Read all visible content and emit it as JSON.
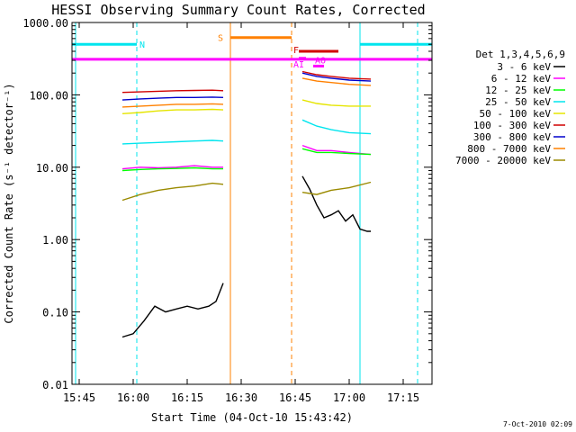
{
  "chart_data": {
    "type": "line",
    "title": "HESSI Observing Summary Count Rates, Corrected",
    "xlabel": "Start Time (04-Oct-10 15:43:42)",
    "ylabel": "Corrected Count Rate (s⁻¹ detector⁻¹)",
    "y_scale": "log",
    "ylim": [
      0.01,
      1000
    ],
    "xlim": [
      "15:43",
      "17:23"
    ],
    "x_ticks": [
      "15:45",
      "16:00",
      "16:15",
      "16:30",
      "16:45",
      "17:00",
      "17:15"
    ],
    "y_ticks": [
      "0.01",
      "0.10",
      "1.00",
      "10.00",
      "100.00",
      "1000.00"
    ],
    "legend_title": "Det 1,3,4,5,6,9",
    "legend_position": "right",
    "timestamp": "7-Oct-2010 02:09",
    "series": [
      {
        "name": "3 - 6 keV",
        "color": "#000000",
        "segments": [
          {
            "x": [
              "15:57",
              "16:00",
              "16:03",
              "16:06",
              "16:09",
              "16:12",
              "16:15",
              "16:18",
              "16:21",
              "16:23",
              "16:25"
            ],
            "y": [
              0.045,
              0.05,
              0.075,
              0.12,
              0.1,
              0.11,
              0.12,
              0.11,
              0.12,
              0.14,
              0.25
            ]
          },
          {
            "x": [
              "16:47",
              "16:49",
              "16:51",
              "16:53",
              "16:55",
              "16:57",
              "16:59",
              "17:01",
              "17:03",
              "17:05",
              "17:06"
            ],
            "y": [
              7.5,
              5.0,
              3.0,
              2.0,
              2.2,
              2.5,
              1.8,
              2.2,
              1.4,
              1.3,
              1.3
            ]
          }
        ]
      },
      {
        "name": "6 - 12 keV",
        "color": "#ff00ff",
        "segments": [
          {
            "x": [
              "15:57",
              "16:02",
              "16:07",
              "16:12",
              "16:17",
              "16:22",
              "16:25"
            ],
            "y": [
              9.5,
              10,
              9.8,
              10,
              10.5,
              10,
              10
            ]
          },
          {
            "x": [
              "16:47",
              "16:51",
              "16:55",
              "17:00",
              "17:06"
            ],
            "y": [
              20,
              17,
              17,
              16,
              15
            ]
          }
        ]
      },
      {
        "name": "12 - 25 keV",
        "color": "#00ff00",
        "segments": [
          {
            "x": [
              "15:57",
              "16:02",
              "16:07",
              "16:12",
              "16:17",
              "16:22",
              "16:25"
            ],
            "y": [
              9.0,
              9.3,
              9.5,
              9.6,
              9.8,
              9.5,
              9.5
            ]
          },
          {
            "x": [
              "16:47",
              "16:51",
              "16:55",
              "17:00",
              "17:06"
            ],
            "y": [
              18,
              16,
              16,
              15.5,
              15
            ]
          }
        ]
      },
      {
        "name": "25 - 50 keV",
        "color": "#00e5ee",
        "segments": [
          {
            "x": [
              "15:57",
              "16:02",
              "16:07",
              "16:12",
              "16:17",
              "16:22",
              "16:25"
            ],
            "y": [
              21,
              21.5,
              22,
              22.5,
              23,
              23.5,
              23
            ]
          },
          {
            "x": [
              "16:47",
              "16:51",
              "16:55",
              "17:00",
              "17:06"
            ],
            "y": [
              45,
              37,
              33,
              30,
              29
            ]
          }
        ]
      },
      {
        "name": "50 - 100 keV",
        "color": "#e5e500",
        "segments": [
          {
            "x": [
              "15:57",
              "16:02",
              "16:07",
              "16:12",
              "16:17",
              "16:22",
              "16:25"
            ],
            "y": [
              55,
              57,
              60,
              62,
              62,
              63,
              62
            ]
          },
          {
            "x": [
              "16:47",
              "16:51",
              "16:55",
              "17:00",
              "17:06"
            ],
            "y": [
              85,
              76,
              72,
              70,
              70
            ]
          }
        ]
      },
      {
        "name": "100 - 300 keV",
        "color": "#d00000",
        "segments": [
          {
            "x": [
              "15:57",
              "16:02",
              "16:07",
              "16:12",
              "16:17",
              "16:22",
              "16:25"
            ],
            "y": [
              108,
              110,
              112,
              114,
              115,
              116,
              114
            ]
          },
          {
            "x": [
              "16:47",
              "16:51",
              "16:55",
              "17:00",
              "17:06"
            ],
            "y": [
              210,
              190,
              180,
              170,
              165
            ]
          }
        ]
      },
      {
        "name": "300 - 800 keV",
        "color": "#0000cc",
        "segments": [
          {
            "x": [
              "15:57",
              "16:02",
              "16:07",
              "16:12",
              "16:17",
              "16:22",
              "16:25"
            ],
            "y": [
              85,
              88,
              90,
              92,
              92,
              93,
              92
            ]
          },
          {
            "x": [
              "16:47",
              "16:51",
              "16:55",
              "17:00",
              "17:06"
            ],
            "y": [
              200,
              180,
              170,
              160,
              155
            ]
          }
        ]
      },
      {
        "name": "800 - 7000 keV",
        "color": "#ff8000",
        "segments": [
          {
            "x": [
              "15:57",
              "16:02",
              "16:07",
              "16:12",
              "16:17",
              "16:22",
              "16:25"
            ],
            "y": [
              68,
              70,
              72,
              74,
              74,
              75,
              74
            ]
          },
          {
            "x": [
              "16:47",
              "16:51",
              "16:55",
              "17:00",
              "17:06"
            ],
            "y": [
              170,
              155,
              148,
              140,
              135
            ]
          }
        ]
      },
      {
        "name": "7000 - 20000 keV",
        "color": "#9a8a00",
        "segments": [
          {
            "x": [
              "15:57",
              "16:02",
              "16:07",
              "16:12",
              "16:17",
              "16:22",
              "16:25"
            ],
            "y": [
              3.5,
              4.2,
              4.8,
              5.2,
              5.5,
              6.0,
              5.8
            ]
          },
          {
            "x": [
              "16:47",
              "16:51",
              "16:55",
              "17:00",
              "17:06"
            ],
            "y": [
              4.5,
              4.2,
              4.8,
              5.2,
              6.2
            ]
          }
        ]
      }
    ],
    "flags": [
      {
        "label": "N",
        "color": "#00e5ee",
        "y": 500,
        "segments": [
          [
            "15:43",
            "16:01"
          ],
          [
            "17:03",
            "17:23"
          ]
        ]
      },
      {
        "label": "S",
        "color": "#ff8000",
        "y": 620,
        "segments": [
          [
            "16:27",
            "16:44"
          ]
        ]
      },
      {
        "label": "F",
        "color": "#d00000",
        "y": 400,
        "segments": [
          [
            "16:46",
            "16:56"
          ]
        ]
      },
      {
        "label": "",
        "color": "#d00000",
        "y": 400,
        "segments": [
          [
            "16:52",
            "16:57"
          ]
        ]
      },
      {
        "label": "AI",
        "color": "#ff00ff",
        "y": 320,
        "segments": [
          [
            "16:46",
            "16:48"
          ]
        ]
      },
      {
        "label": "AO",
        "color": "#ff00ff",
        "y": 250,
        "segments": [
          [
            "16:50",
            "16:53"
          ]
        ]
      },
      {
        "label": "",
        "color": "#ff00ff",
        "y": 310,
        "segments": [
          [
            "15:43",
            "17:23"
          ]
        ]
      }
    ],
    "vertical_markers": [
      {
        "x": "15:44",
        "color": "#00e5ee",
        "style": "solid"
      },
      {
        "x": "16:01",
        "color": "#00e5ee",
        "style": "dashed"
      },
      {
        "x": "16:27",
        "color": "#ff8000",
        "style": "solid"
      },
      {
        "x": "16:44",
        "color": "#ff8000",
        "style": "dashed"
      },
      {
        "x": "17:03",
        "color": "#00e5ee",
        "style": "solid"
      },
      {
        "x": "17:19",
        "color": "#00e5ee",
        "style": "dashed"
      }
    ]
  }
}
